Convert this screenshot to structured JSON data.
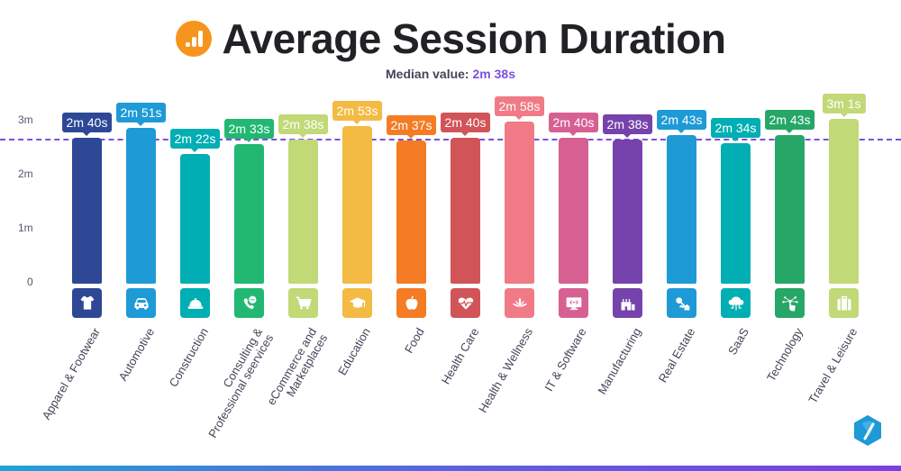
{
  "header": {
    "title": "Average Session Duration",
    "subtitle_label": "Median value:",
    "subtitle_value": "2m 38s",
    "logo": "analytics-bar-icon"
  },
  "colors": {
    "median_line": "#7b4fe0",
    "title": "#222226",
    "logo": "#f7941d",
    "bottom_gradient": [
      "#1fa2d8",
      "#7b3fe4"
    ]
  },
  "y_axis": {
    "ticks": [
      "0",
      "1m",
      "2m",
      "3m"
    ]
  },
  "chart_data": {
    "type": "bar",
    "title": "Average Session Duration",
    "subtitle": "Median value: 2m 38s",
    "xlabel": "",
    "ylabel": "",
    "ylim": [
      0,
      190
    ],
    "unit": "seconds",
    "median": 158,
    "median_label": "2m 38s",
    "y_tick_labels": [
      "0",
      "1m",
      "2m",
      "3m"
    ],
    "y_tick_values": [
      0,
      60,
      120,
      180
    ],
    "grid": false,
    "legend": null,
    "categories": [
      "Apparel & Footwear",
      "Automotive",
      "Construction",
      "Consulting & Professional seervices",
      "eCommerce and Marketplaces",
      "Education",
      "Food",
      "Health Care",
      "Health & Wellness",
      "IT & Software",
      "Manufacturing",
      "Real Estate",
      "SaaS",
      "Technology",
      "Travel & Leisure"
    ],
    "values": [
      160,
      171,
      142,
      153,
      158,
      173,
      157,
      160,
      178,
      160,
      158,
      163,
      154,
      163,
      181
    ],
    "value_labels": [
      "2m 40s",
      "2m 51s",
      "2m 22s",
      "2m 33s",
      "2m 38s",
      "2m 53s",
      "2m 37s",
      "2m 40s",
      "2m 58s",
      "2m 40s",
      "2m 38s",
      "2m 43s",
      "2m 34s",
      "2m 43s",
      "3m 1s"
    ]
  },
  "bars": [
    {
      "label": "Apparel & Footwear",
      "value_label": "2m 40s",
      "seconds": 160,
      "color": "#2e4896",
      "icon": "tshirt-icon"
    },
    {
      "label": "Automotive",
      "value_label": "2m 51s",
      "seconds": 171,
      "color": "#1e9ad6",
      "icon": "car-icon"
    },
    {
      "label": "Construction",
      "value_label": "2m 22s",
      "seconds": 142,
      "color": "#00aeb3",
      "icon": "hard-hat-icon"
    },
    {
      "label": "Consulting & Professional seervices",
      "value_label": "2m 33s",
      "seconds": 153,
      "color": "#22b872",
      "icon": "phone-chat-icon"
    },
    {
      "label": "eCommerce and Marketplaces",
      "value_label": "2m 38s",
      "seconds": 158,
      "color": "#c1d977",
      "icon": "cart-icon"
    },
    {
      "label": "Education",
      "value_label": "2m 53s",
      "seconds": 173,
      "color": "#f3bb43",
      "icon": "graduation-cap-icon"
    },
    {
      "label": "Food",
      "value_label": "2m 37s",
      "seconds": 157,
      "color": "#f47c24",
      "icon": "apple-icon"
    },
    {
      "label": "Health Care",
      "value_label": "2m 40s",
      "seconds": 160,
      "color": "#d15458",
      "icon": "heartbeat-icon"
    },
    {
      "label": "Health & Wellness",
      "value_label": "2m 58s",
      "seconds": 178,
      "color": "#f07a86",
      "icon": "lotus-icon"
    },
    {
      "label": "IT & Software",
      "value_label": "2m 40s",
      "seconds": 160,
      "color": "#d76092",
      "icon": "monitor-code-icon"
    },
    {
      "label": "Manufacturing",
      "value_label": "2m 38s",
      "seconds": 158,
      "color": "#7642ac",
      "icon": "factory-icon"
    },
    {
      "label": "Real Estate",
      "value_label": "2m 43s",
      "seconds": 163,
      "color": "#1e9ad6",
      "icon": "key-house-icon"
    },
    {
      "label": "SaaS",
      "value_label": "2m 34s",
      "seconds": 154,
      "color": "#00aeb3",
      "icon": "cloud-network-icon"
    },
    {
      "label": "Technology",
      "value_label": "2m 43s",
      "seconds": 163,
      "color": "#26a768",
      "icon": "touch-network-icon"
    },
    {
      "label": "Travel & Leisure",
      "value_label": "3m 1s",
      "seconds": 181,
      "color": "#c1d977",
      "icon": "suitcase-icon"
    }
  ],
  "brand": {
    "logo": "hexagon-gauge-icon",
    "color": "#1e9ad6"
  }
}
